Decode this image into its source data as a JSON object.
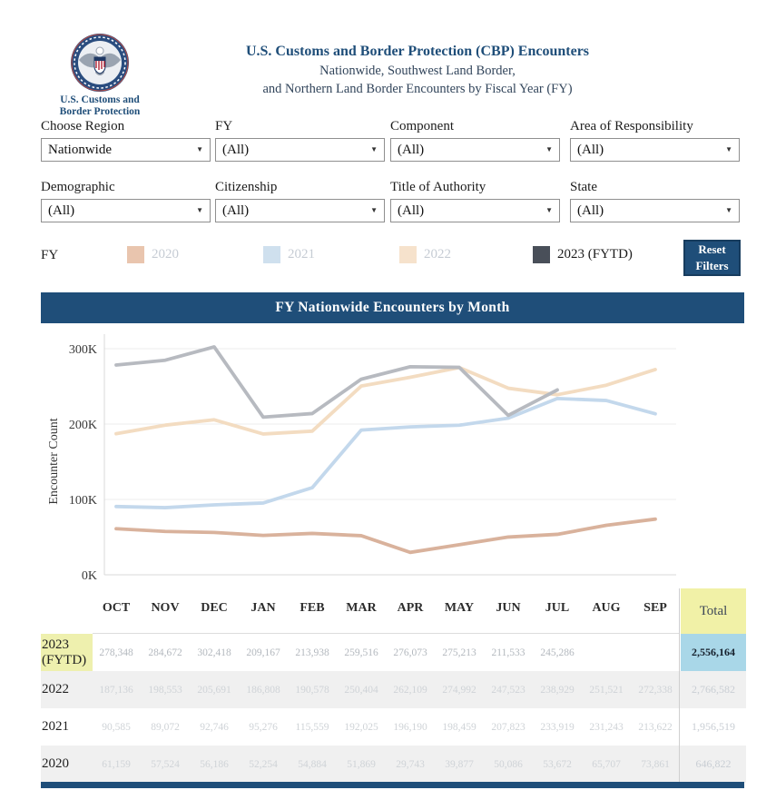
{
  "header": {
    "title": "U.S. Customs and Border Protection (CBP) Encounters",
    "subtitle1": "Nationwide, Southwest Land Border,",
    "subtitle2": "and Northern Land Border Encounters by Fiscal Year (FY)",
    "logo_caption1": "U.S. Customs and",
    "logo_caption2": "Border Protection"
  },
  "filters": [
    {
      "label": "Choose Region",
      "value": "Nationwide"
    },
    {
      "label": "FY",
      "value": "(All)"
    },
    {
      "label": "Component",
      "value": "(All)"
    },
    {
      "label": "Area of Responsibility",
      "value": "(All)"
    },
    {
      "label": "Demographic",
      "value": "(All)"
    },
    {
      "label": "Citizenship",
      "value": "(All)"
    },
    {
      "label": "Title of Authority",
      "value": "(All)"
    },
    {
      "label": "State",
      "value": "(All)"
    }
  ],
  "legend": {
    "title": "FY",
    "items": [
      {
        "label": "2020",
        "swatch": "#e9c5ae",
        "label_color": "#c6ccd4"
      },
      {
        "label": "2021",
        "swatch": "#cfe0ee",
        "label_color": "#c6ccd4"
      },
      {
        "label": "2022",
        "swatch": "#f6e2cc",
        "label_color": "#c6ccd4"
      },
      {
        "label": "2023 (FYTD)",
        "swatch": "#494f59",
        "label_color": "#1b1b1b"
      }
    ],
    "reset_button_label": "Reset Filters"
  },
  "chart": {
    "title": "FY Nationwide Encounters by Month",
    "ylabel": "Encounter Count"
  },
  "chart_data": {
    "type": "line",
    "title": "FY Nationwide Encounters by Month",
    "xlabel": "",
    "ylabel": "Encounter Count",
    "categories": [
      "OCT",
      "NOV",
      "DEC",
      "JAN",
      "FEB",
      "MAR",
      "APR",
      "MAY",
      "JUN",
      "JUL",
      "AUG",
      "SEP"
    ],
    "ylim": [
      0,
      320000
    ],
    "yticks": [
      {
        "label": "0K",
        "value": 0
      },
      {
        "label": "100K",
        "value": 100000
      },
      {
        "label": "200K",
        "value": 200000
      },
      {
        "label": "300K",
        "value": 300000
      }
    ],
    "grid": true,
    "legend_position": "top",
    "series": [
      {
        "name": "2020",
        "color": "#d9b29c",
        "values": [
          61159,
          57524,
          56186,
          52254,
          54884,
          51869,
          29743,
          39877,
          50086,
          53672,
          65707,
          73861
        ]
      },
      {
        "name": "2021",
        "color": "#c3d8ec",
        "values": [
          90585,
          89072,
          92746,
          95276,
          115559,
          192025,
          196190,
          198459,
          207823,
          233919,
          231243,
          213622
        ]
      },
      {
        "name": "2022",
        "color": "#f3dcc1",
        "values": [
          187136,
          198553,
          205691,
          186808,
          190578,
          250404,
          262109,
          274992,
          247523,
          238929,
          251521,
          272338
        ]
      },
      {
        "name": "2023 (FYTD)",
        "color": "#b7bac0",
        "values": [
          278348,
          284672,
          302418,
          209167,
          213938,
          259516,
          276073,
          275213,
          211533,
          245286,
          null,
          null
        ]
      }
    ]
  },
  "table": {
    "columns": [
      "OCT",
      "NOV",
      "DEC",
      "JAN",
      "FEB",
      "MAR",
      "APR",
      "MAY",
      "JUN",
      "JUL",
      "AUG",
      "SEP"
    ],
    "total_label": "Total",
    "rows": [
      {
        "year": "2023 (FYTD)",
        "highlight": true,
        "values": [
          "278,348",
          "284,672",
          "302,418",
          "209,167",
          "213,938",
          "259,516",
          "276,073",
          "275,213",
          "211,533",
          "245,286",
          "",
          ""
        ],
        "total": "2,556,164"
      },
      {
        "year": "2022",
        "highlight": false,
        "values": [
          "187,136",
          "198,553",
          "205,691",
          "186,808",
          "190,578",
          "250,404",
          "262,109",
          "274,992",
          "247,523",
          "238,929",
          "251,521",
          "272,338"
        ],
        "total": "2,766,582"
      },
      {
        "year": "2021",
        "highlight": false,
        "values": [
          "90,585",
          "89,072",
          "92,746",
          "95,276",
          "115,559",
          "192,025",
          "196,190",
          "198,459",
          "207,823",
          "233,919",
          "231,243",
          "213,622"
        ],
        "total": "1,956,519"
      },
      {
        "year": "2020",
        "highlight": false,
        "values": [
          "61,159",
          "57,524",
          "56,186",
          "52,254",
          "54,884",
          "51,869",
          "29,743",
          "39,877",
          "50,086",
          "53,672",
          "65,707",
          "73,861"
        ],
        "total": "646,822"
      }
    ]
  },
  "colors": {
    "accent_navy": "#1f4e79",
    "highlight_yellow": "#eef0ae",
    "total_header_yellow": "#f1f1a7",
    "total_highlight_blue": "#a9d7e8",
    "stripe_gray": "#f0f0f0"
  }
}
